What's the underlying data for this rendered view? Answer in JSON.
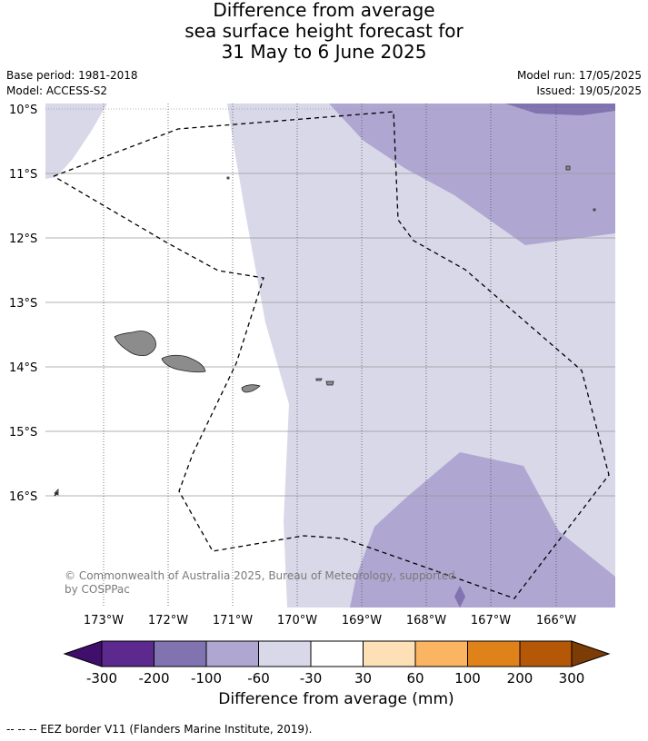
{
  "title": {
    "line1": "Difference from average",
    "line2": "sea surface height forecast for",
    "line3": "31 May to 6 June 2025"
  },
  "meta": {
    "base_period": "Base period: 1981-2018",
    "model": "Model: ACCESS-S2",
    "model_run": "Model run: 17/05/2025",
    "issued": "Issued: 19/05/2025"
  },
  "map": {
    "lat_labels": [
      "10°S",
      "11°S",
      "12°S",
      "13°S",
      "14°S",
      "15°S",
      "16°S"
    ],
    "lon_labels": [
      "173°W",
      "172°W",
      "171°W",
      "170°W",
      "169°W",
      "168°W",
      "167°W",
      "166°W"
    ],
    "copyright_line1": "© Commonwealth of Australia 2025, Bureau of Meteorology, supported",
    "copyright_line2": "by COSPPac",
    "colors": {
      "land": "#8c8c8c",
      "ocean_white": "#ffffff",
      "band_m30_m60": "#d8d8e9",
      "band_m60_m100": "#afa7d1",
      "band_m100_m200": "#8073b0"
    }
  },
  "colorbar": {
    "ticks": [
      "-300",
      "-200",
      "-100",
      "-60",
      "-30",
      "30",
      "60",
      "100",
      "200",
      "300"
    ],
    "colors": [
      "#3f0f6b",
      "#5c2a8e",
      "#8073b0",
      "#afa7d1",
      "#d8d8e9",
      "#ffffff",
      "#fde0b6",
      "#fbb462",
      "#e0821a",
      "#b45808",
      "#7d3b05"
    ],
    "label": "Difference from average (mm)"
  },
  "footnote": "--  --  -- EEZ border V11 (Flanders Marine Institute, 2019)."
}
